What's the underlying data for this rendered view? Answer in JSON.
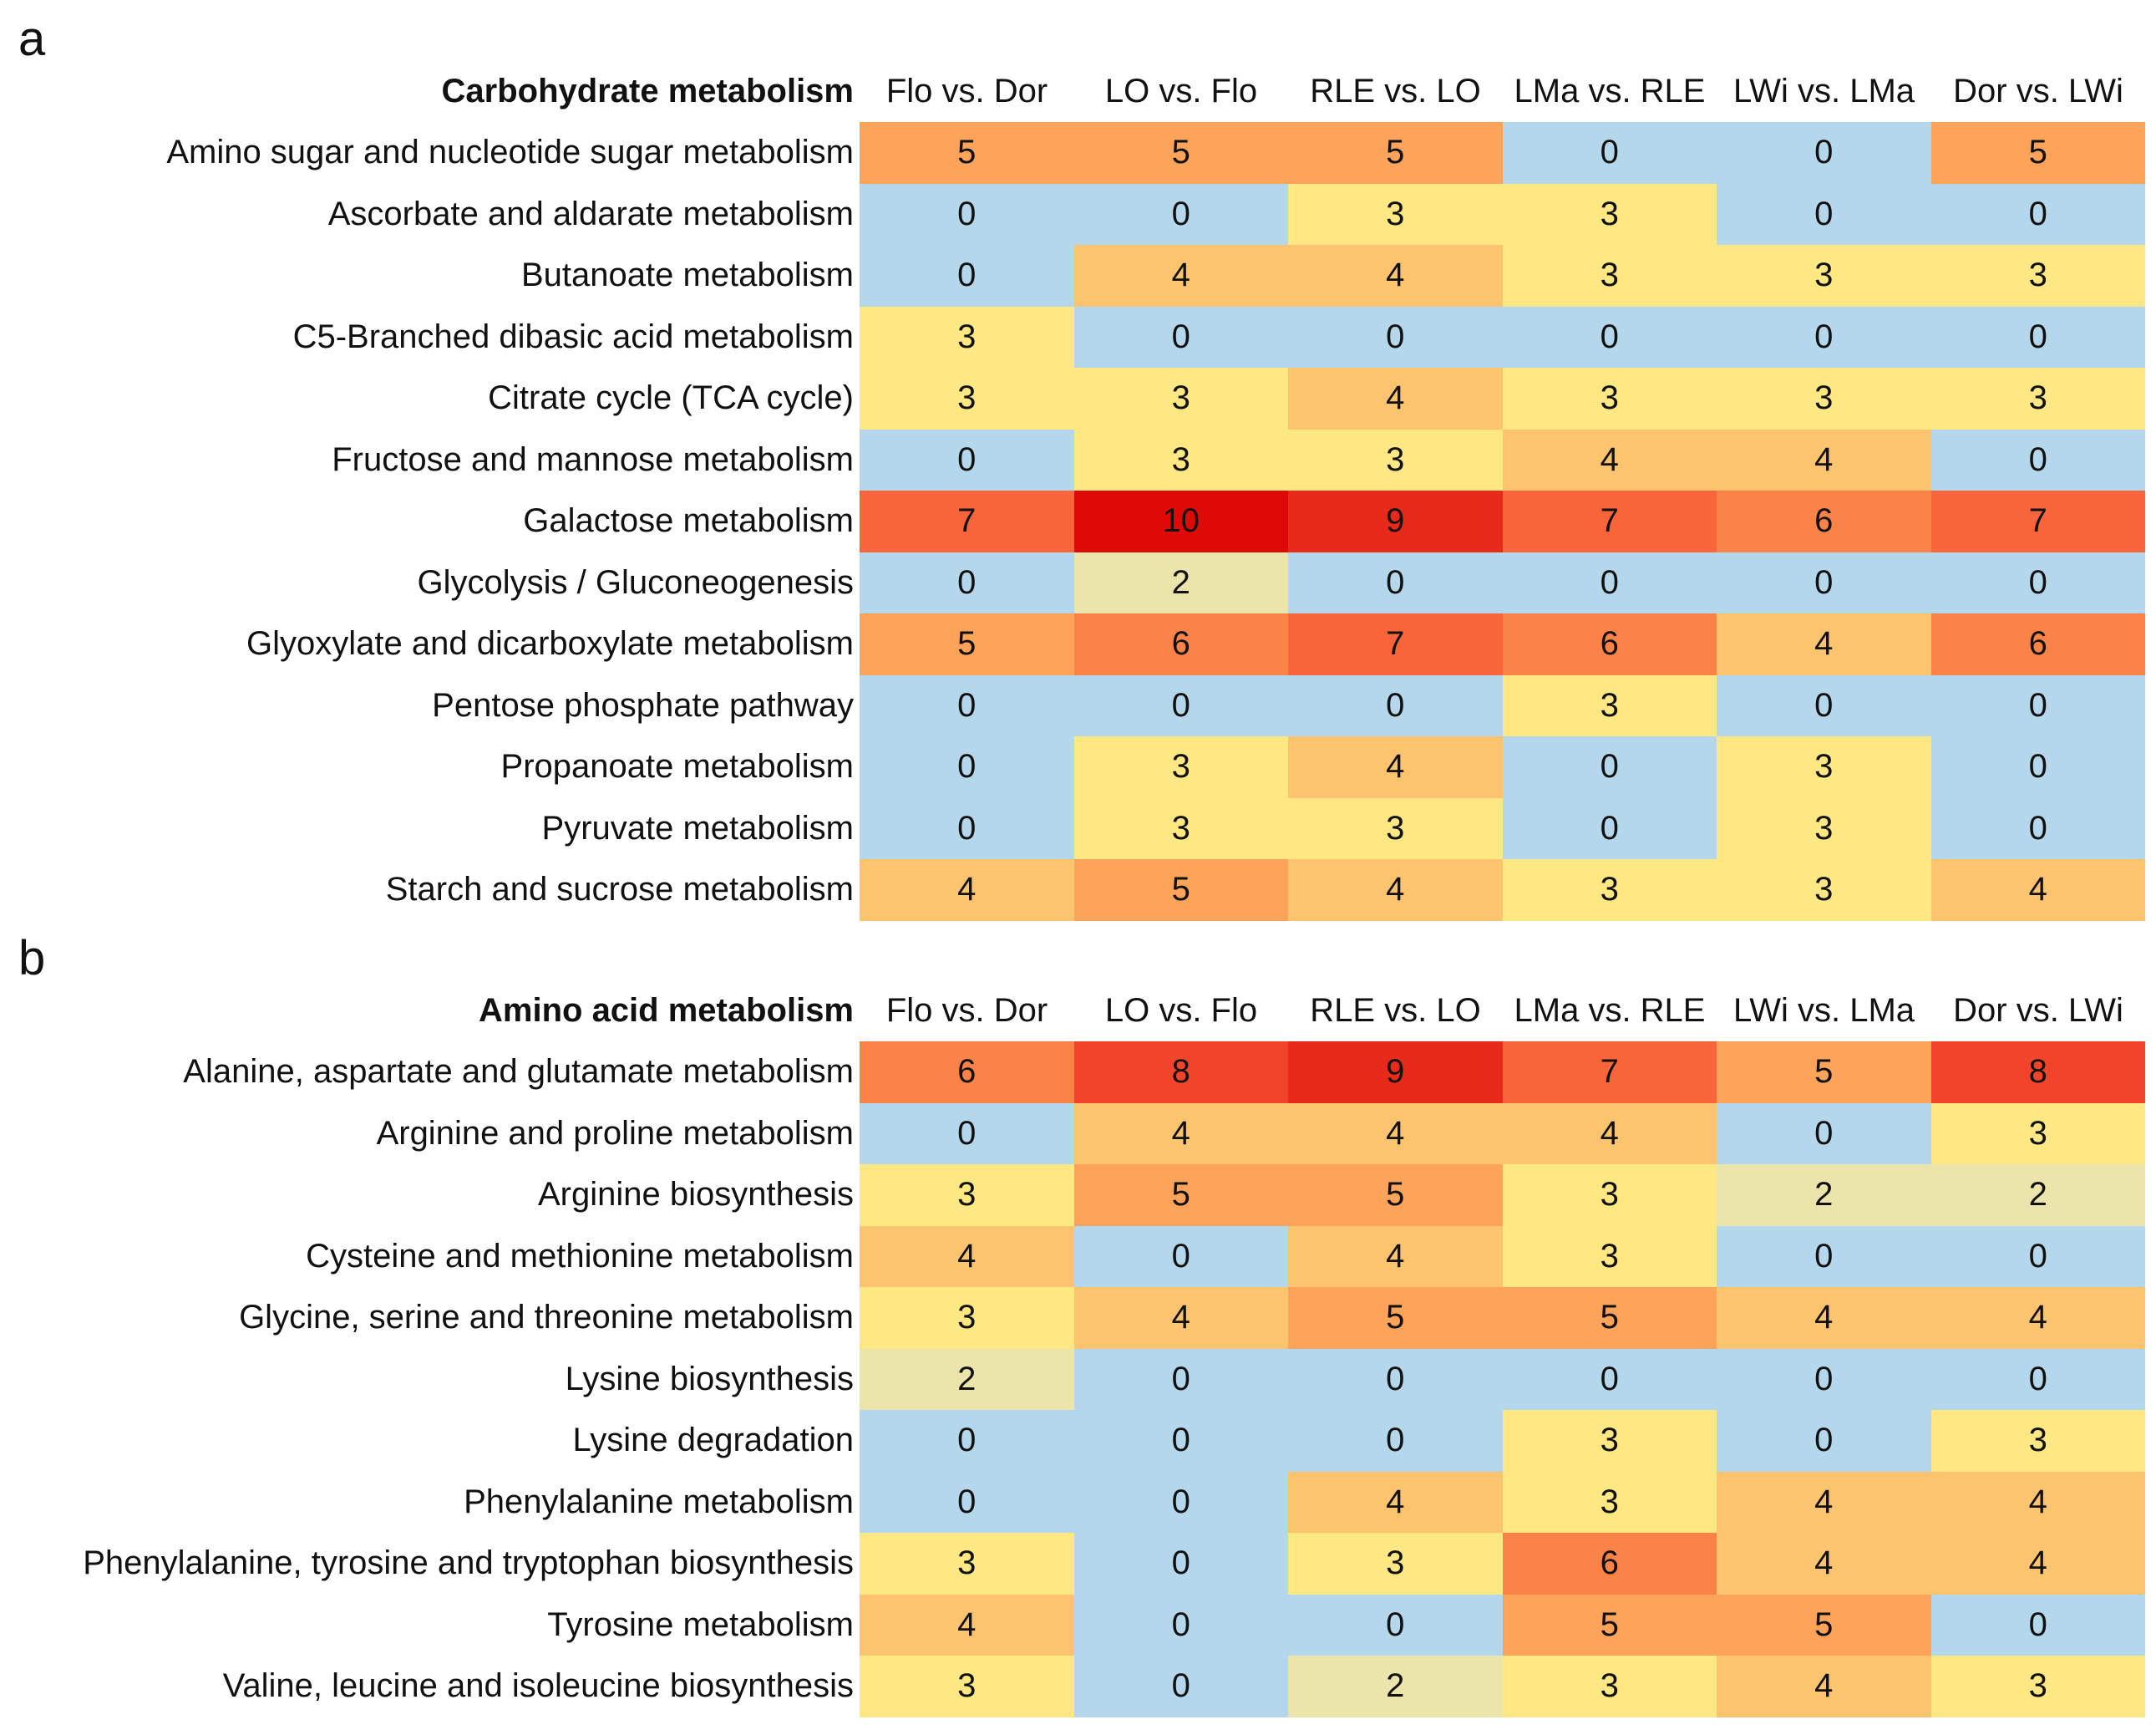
{
  "chart_data": [
    {
      "type": "heatmap",
      "panel_label": "a",
      "title": "Carbohydrate metabolism",
      "columns": [
        "Flo vs. Dor",
        "LO vs. Flo",
        "RLE vs. LO",
        "LMa vs. RLE",
        "LWi vs. LMa",
        "Dor vs. LWi"
      ],
      "rows": [
        {
          "label": "Amino sugar and nucleotide sugar metabolism",
          "values": [
            5,
            5,
            5,
            0,
            0,
            5
          ]
        },
        {
          "label": "Ascorbate and aldarate metabolism",
          "values": [
            0,
            0,
            3,
            3,
            0,
            0
          ]
        },
        {
          "label": "Butanoate metabolism",
          "values": [
            0,
            4,
            4,
            3,
            3,
            3
          ]
        },
        {
          "label": "C5-Branched dibasic acid metabolism",
          "values": [
            3,
            0,
            0,
            0,
            0,
            0
          ]
        },
        {
          "label": "Citrate cycle (TCA cycle)",
          "values": [
            3,
            3,
            4,
            3,
            3,
            3
          ]
        },
        {
          "label": "Fructose and mannose metabolism",
          "values": [
            0,
            3,
            3,
            4,
            4,
            0
          ]
        },
        {
          "label": "Galactose metabolism",
          "values": [
            7,
            10,
            9,
            7,
            6,
            7
          ]
        },
        {
          "label": "Glycolysis / Gluconeogenesis",
          "values": [
            0,
            2,
            0,
            0,
            0,
            0
          ]
        },
        {
          "label": "Glyoxylate and dicarboxylate metabolism",
          "values": [
            5,
            6,
            7,
            6,
            4,
            6
          ]
        },
        {
          "label": "Pentose phosphate pathway",
          "values": [
            0,
            0,
            0,
            3,
            0,
            0
          ]
        },
        {
          "label": "Propanoate metabolism",
          "values": [
            0,
            3,
            4,
            0,
            3,
            0
          ]
        },
        {
          "label": "Pyruvate metabolism",
          "values": [
            0,
            3,
            3,
            0,
            3,
            0
          ]
        },
        {
          "label": "Starch and sucrose metabolism",
          "values": [
            4,
            5,
            4,
            3,
            3,
            4
          ]
        }
      ]
    },
    {
      "type": "heatmap",
      "panel_label": "b",
      "title": "Amino acid metabolism",
      "columns": [
        "Flo vs. Dor",
        "LO vs. Flo",
        "RLE vs. LO",
        "LMa vs. RLE",
        "LWi vs. LMa",
        "Dor vs. LWi"
      ],
      "rows": [
        {
          "label": "Alanine, aspartate and glutamate metabolism",
          "values": [
            6,
            8,
            9,
            7,
            5,
            8
          ]
        },
        {
          "label": "Arginine and proline metabolism",
          "values": [
            0,
            4,
            4,
            4,
            0,
            3
          ]
        },
        {
          "label": "Arginine biosynthesis",
          "values": [
            3,
            5,
            5,
            3,
            2,
            2
          ]
        },
        {
          "label": "Cysteine and methionine metabolism",
          "values": [
            4,
            0,
            4,
            3,
            0,
            0
          ]
        },
        {
          "label": "Glycine, serine and threonine metabolism",
          "values": [
            3,
            4,
            5,
            5,
            4,
            4
          ]
        },
        {
          "label": "Lysine biosynthesis",
          "values": [
            2,
            0,
            0,
            0,
            0,
            0
          ]
        },
        {
          "label": "Lysine degradation",
          "values": [
            0,
            0,
            0,
            3,
            0,
            3
          ]
        },
        {
          "label": "Phenylalanine metabolism",
          "values": [
            0,
            0,
            4,
            3,
            4,
            4
          ]
        },
        {
          "label": "Phenylalanine, tyrosine and tryptophan biosynthesis",
          "values": [
            3,
            0,
            3,
            6,
            4,
            4
          ]
        },
        {
          "label": "Tyrosine metabolism",
          "values": [
            4,
            0,
            0,
            5,
            5,
            0
          ]
        },
        {
          "label": "Valine, leucine and isoleucine biosynthesis",
          "values": [
            3,
            0,
            2,
            3,
            4,
            3
          ]
        }
      ]
    }
  ],
  "color_scale": {
    "0": "#b5d7ec",
    "2": "#ebe4ab",
    "3": "#fde884",
    "4": "#fdc46f",
    "5": "#fda35a",
    "6": "#fc8348",
    "7": "#f9653a",
    "8": "#f0452a",
    "9": "#e72a1a",
    "10": "#dd0a08"
  }
}
